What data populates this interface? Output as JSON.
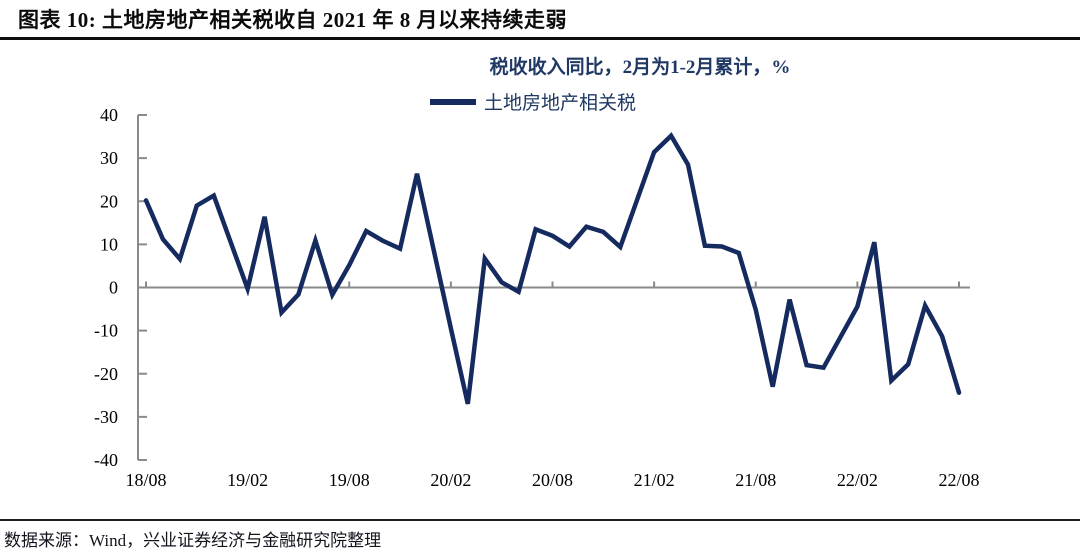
{
  "header": {
    "title": "图表 10:  土地房地产相关税收自 2021 年 8 月以来持续走弱"
  },
  "chart_data": {
    "type": "line",
    "title": "税收收入同比，2月为1-2月累计，%",
    "legend_position": "top-center",
    "grid": "zero-line-only",
    "ylim": [
      -40,
      40
    ],
    "y_ticks": [
      40,
      30,
      20,
      10,
      0,
      -10,
      -20,
      -30,
      -40
    ],
    "x_tick_labels": [
      "18/08",
      "19/02",
      "19/08",
      "20/02",
      "20/08",
      "21/02",
      "21/08",
      "22/02",
      "22/08"
    ],
    "x": [
      "18/08",
      "18/09",
      "18/10",
      "18/11",
      "18/12",
      "19/02",
      "19/03",
      "19/04",
      "19/05",
      "19/06",
      "19/07",
      "19/08",
      "19/09",
      "19/10",
      "19/11",
      "19/12",
      "20/02",
      "20/03",
      "20/04",
      "20/05",
      "20/06",
      "20/07",
      "20/08",
      "20/09",
      "20/10",
      "20/11",
      "20/12",
      "21/02",
      "21/03",
      "21/04",
      "21/05",
      "21/06",
      "21/07",
      "21/08",
      "21/09",
      "21/10",
      "21/11",
      "21/12",
      "22/02",
      "22/03",
      "22/04",
      "22/05",
      "22/06",
      "22/07",
      "22/08"
    ],
    "series": [
      {
        "name": "土地房地产相关税",
        "values": [
          20.2,
          11.2,
          6.6,
          19.0,
          21.3,
          -0.3,
          16.4,
          -5.8,
          -1.6,
          10.9,
          -1.7,
          5.2,
          13.1,
          10.8,
          9.0,
          26.4,
          -9.5,
          -27.0,
          6.7,
          1.2,
          -1.0,
          13.5,
          12.0,
          9.5,
          14.1,
          12.9,
          9.4,
          31.4,
          35.2,
          28.5,
          9.7,
          9.5,
          8.0,
          -5.2,
          -23.0,
          -2.8,
          -18.0,
          -18.6,
          -4.4,
          10.5,
          -21.6,
          -17.8,
          -4.2,
          -11.3,
          -24.4
        ]
      }
    ]
  },
  "colors": {
    "series_line": "#152a5e",
    "axis": "#8a8a8a",
    "subtitle_text": "#1f3864",
    "title_text": "#0b0b0b"
  },
  "footer": {
    "source": "数据来源：Wind，兴业证券经济与金融研究院整理"
  }
}
